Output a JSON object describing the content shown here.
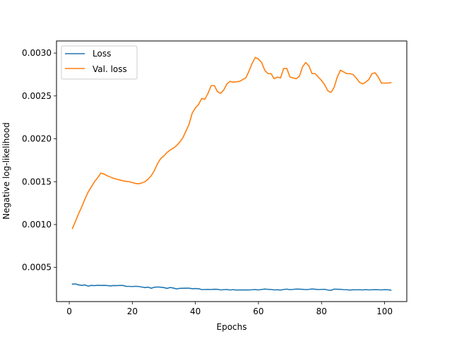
{
  "chart_data": {
    "type": "line",
    "title": "",
    "xlabel": "Epochs",
    "ylabel": "Negative log-likelihood",
    "xlim": [
      -4.05,
      107.05
    ],
    "ylim": [
      0.000102,
      0.003141
    ],
    "x_ticks": [
      0,
      20,
      40,
      60,
      80,
      100
    ],
    "x_tick_labels": [
      "0",
      "20",
      "40",
      "60",
      "80",
      "100"
    ],
    "y_ticks": [
      0.0005,
      0.001,
      0.0015,
      0.002,
      0.0025,
      0.003
    ],
    "y_tick_labels": [
      "0.0005",
      "0.0010",
      "0.0015",
      "0.0020",
      "0.0025",
      "0.0030"
    ],
    "grid": false,
    "legend_position": "top-left",
    "series": [
      {
        "name": "Loss",
        "color": "#1f77b4",
        "x": [
          1,
          2,
          3,
          4,
          5,
          6,
          7,
          8,
          9,
          10,
          11,
          12,
          13,
          14,
          15,
          16,
          17,
          18,
          19,
          20,
          21,
          22,
          23,
          24,
          25,
          26,
          27,
          28,
          29,
          30,
          31,
          32,
          33,
          34,
          35,
          36,
          37,
          38,
          39,
          40,
          41,
          42,
          43,
          44,
          45,
          46,
          47,
          48,
          49,
          50,
          51,
          52,
          53,
          54,
          55,
          56,
          57,
          58,
          59,
          60,
          61,
          62,
          63,
          64,
          65,
          66,
          67,
          68,
          69,
          70,
          71,
          72,
          73,
          74,
          75,
          76,
          77,
          78,
          79,
          80,
          81,
          82,
          83,
          84,
          85,
          86,
          87,
          88,
          89,
          90,
          91,
          92,
          93,
          94,
          95,
          96,
          97,
          98,
          99,
          100,
          101,
          102
        ],
        "values": [
          0.000305,
          0.000308,
          0.000296,
          0.000291,
          0.000296,
          0.000282,
          0.000291,
          0.000288,
          0.000292,
          0.00029,
          0.000291,
          0.000289,
          0.000285,
          0.000289,
          0.000288,
          0.00029,
          0.00029,
          0.00028,
          0.000279,
          0.000277,
          0.00028,
          0.000278,
          0.000272,
          0.000265,
          0.00027,
          0.000258,
          0.000269,
          0.000272,
          0.000269,
          0.000265,
          0.000256,
          0.000266,
          0.00026,
          0.000249,
          0.000256,
          0.000257,
          0.000258,
          0.000258,
          0.000252,
          0.000254,
          0.000252,
          0.000242,
          0.000243,
          0.000244,
          0.000243,
          0.000246,
          0.000245,
          0.000238,
          0.000241,
          0.000243,
          0.000237,
          0.000241,
          0.000236,
          0.000238,
          0.000237,
          0.000238,
          0.000237,
          0.00024,
          0.000242,
          0.000238,
          0.000243,
          0.000248,
          0.000245,
          0.000243,
          0.000238,
          0.00024,
          0.000236,
          0.000243,
          0.000247,
          0.000241,
          0.000244,
          0.000248,
          0.000247,
          0.000245,
          0.000242,
          0.000244,
          0.000249,
          0.000246,
          0.000242,
          0.000244,
          0.000245,
          0.000237,
          0.000233,
          0.000247,
          0.000246,
          0.000245,
          0.000241,
          0.00024,
          0.000236,
          0.00024,
          0.000239,
          0.00024,
          0.000238,
          0.000241,
          0.000238,
          0.00024,
          0.000241,
          0.00024,
          0.000238,
          0.000241,
          0.00024,
          0.000235
        ]
      },
      {
        "name": "Val. loss",
        "color": "#ff7f0e",
        "x": [
          1,
          2,
          3,
          4,
          5,
          6,
          7,
          8,
          9,
          10,
          11,
          12,
          13,
          14,
          15,
          16,
          17,
          18,
          19,
          20,
          21,
          22,
          23,
          24,
          25,
          26,
          27,
          28,
          29,
          30,
          31,
          32,
          33,
          34,
          35,
          36,
          37,
          38,
          39,
          40,
          41,
          42,
          43,
          44,
          45,
          46,
          47,
          48,
          49,
          50,
          51,
          52,
          53,
          54,
          55,
          56,
          57,
          58,
          59,
          60,
          61,
          62,
          63,
          64,
          65,
          66,
          67,
          68,
          69,
          70,
          71,
          72,
          73,
          74,
          75,
          76,
          77,
          78,
          79,
          80,
          81,
          82,
          83,
          84,
          85,
          86,
          87,
          88,
          89,
          90,
          91,
          92,
          93,
          94,
          95,
          96,
          97,
          98,
          99,
          100,
          101,
          102
        ],
        "values": [
          0.000955,
          0.00104,
          0.00113,
          0.00121,
          0.0013,
          0.00138,
          0.00144,
          0.0015,
          0.001545,
          0.0016,
          0.00159,
          0.00157,
          0.001555,
          0.00154,
          0.00153,
          0.00152,
          0.00151,
          0.001505,
          0.0015,
          0.00149,
          0.00148,
          0.001475,
          0.001485,
          0.0015,
          0.00153,
          0.00157,
          0.00163,
          0.00171,
          0.00177,
          0.0018,
          0.00184,
          0.00187,
          0.00189,
          0.00192,
          0.00196,
          0.00201,
          0.00209,
          0.00217,
          0.0023,
          0.00236,
          0.0024,
          0.00247,
          0.00246,
          0.00253,
          0.00262,
          0.00262,
          0.00255,
          0.00253,
          0.00257,
          0.00264,
          0.00267,
          0.00266,
          0.002665,
          0.00267,
          0.00269,
          0.00271,
          0.00279,
          0.00288,
          0.00295,
          0.00293,
          0.00289,
          0.0028,
          0.00276,
          0.00276,
          0.0027,
          0.00272,
          0.00271,
          0.00282,
          0.00282,
          0.00272,
          0.00271,
          0.0027,
          0.00273,
          0.00284,
          0.00289,
          0.00285,
          0.00276,
          0.00276,
          0.00272,
          0.00268,
          0.00263,
          0.00256,
          0.00254,
          0.0026,
          0.00272,
          0.0028,
          0.00278,
          0.00276,
          0.00276,
          0.00275,
          0.00271,
          0.00266,
          0.00264,
          0.00266,
          0.00269,
          0.00276,
          0.00277,
          0.00272,
          0.00265,
          0.00265,
          0.00265,
          0.002655
        ]
      }
    ]
  }
}
